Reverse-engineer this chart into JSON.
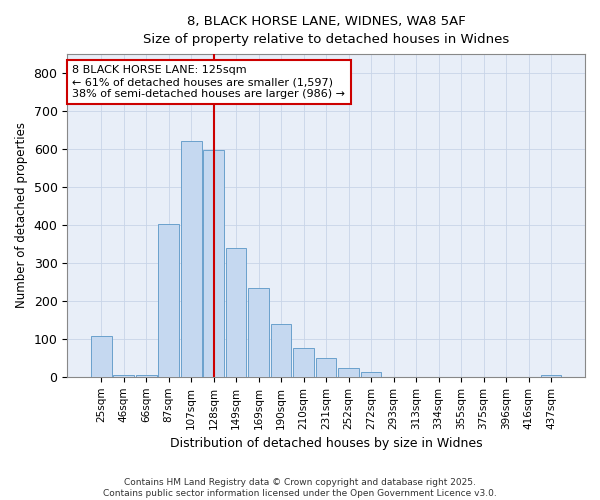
{
  "title1": "8, BLACK HORSE LANE, WIDNES, WA8 5AF",
  "title2": "Size of property relative to detached houses in Widnes",
  "xlabel": "Distribution of detached houses by size in Widnes",
  "ylabel": "Number of detached properties",
  "bar_labels": [
    "25sqm",
    "46sqm",
    "66sqm",
    "87sqm",
    "107sqm",
    "128sqm",
    "149sqm",
    "169sqm",
    "190sqm",
    "210sqm",
    "231sqm",
    "252sqm",
    "272sqm",
    "293sqm",
    "313sqm",
    "334sqm",
    "355sqm",
    "375sqm",
    "396sqm",
    "416sqm",
    "437sqm"
  ],
  "bar_values": [
    108,
    5,
    5,
    403,
    620,
    598,
    338,
    235,
    138,
    77,
    49,
    24,
    14,
    0,
    0,
    0,
    0,
    0,
    0,
    0,
    6
  ],
  "bar_color": "#c5d8f0",
  "bar_edge_color": "#6aa0cc",
  "red_line_index": 5,
  "annotation_text": "8 BLACK HORSE LANE: 125sqm\n← 61% of detached houses are smaller (1,597)\n38% of semi-detached houses are larger (986) →",
  "red_line_color": "#cc0000",
  "annotation_box_color": "#cc0000",
  "ylim": [
    0,
    850
  ],
  "yticks": [
    0,
    100,
    200,
    300,
    400,
    500,
    600,
    700,
    800
  ],
  "footer1": "Contains HM Land Registry data © Crown copyright and database right 2025.",
  "footer2": "Contains public sector information licensed under the Open Government Licence v3.0.",
  "bg_color": "#e8eef8",
  "grid_color": "#c8d4e8"
}
